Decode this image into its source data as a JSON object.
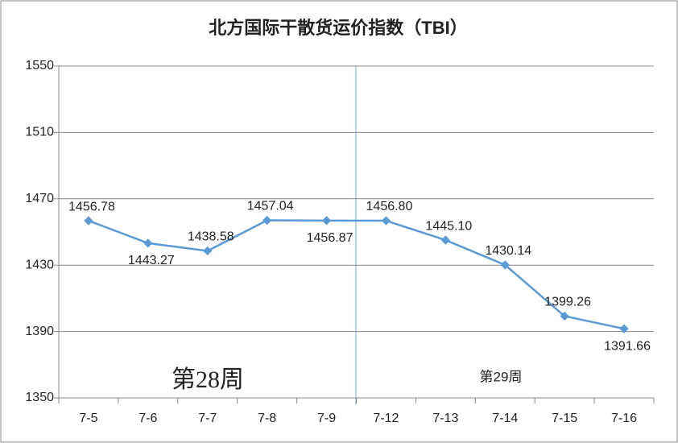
{
  "chart_data": {
    "type": "line",
    "title": "北方国际干散货运价指数（TBI）",
    "categories": [
      "7-5",
      "7-6",
      "7-7",
      "7-8",
      "7-9",
      "7-12",
      "7-13",
      "7-14",
      "7-15",
      "7-16"
    ],
    "series": [
      {
        "name": "TBI",
        "color": "#5b9bd5",
        "values": [
          1456.78,
          1443.27,
          1438.58,
          1457.04,
          1456.87,
          1456.8,
          1445.1,
          1430.14,
          1399.26,
          1391.66
        ],
        "value_labels": [
          "1456.78",
          "1443.27",
          "1438.58",
          "1457.04",
          "1456.87",
          "1456.80",
          "1445.10",
          "1430.14",
          "1399.26",
          "1391.66"
        ]
      }
    ],
    "ylim": [
      1350,
      1550
    ],
    "yticks": [
      1350,
      1390,
      1430,
      1470,
      1510,
      1550
    ],
    "grid": true,
    "annotations": [
      "第28周",
      "第29周"
    ]
  }
}
